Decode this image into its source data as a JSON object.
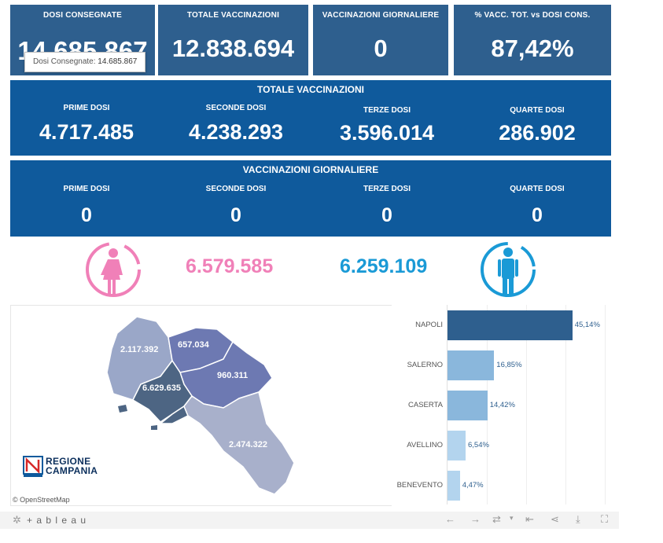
{
  "kpis": [
    {
      "label": "DOSI  CONSEGNATE",
      "value": "14.685.867"
    },
    {
      "label": "TOTALE VACCINAZIONI",
      "value": "12.838.694"
    },
    {
      "label": "VACCINAZIONI GIORNALIERE",
      "value": "0"
    },
    {
      "label": "% VACC. TOT. vs DOSI CONS.",
      "value": "87,42%"
    }
  ],
  "tooltip": {
    "label": "Dosi Consegnate:",
    "value": "14.685.867"
  },
  "totale": {
    "title": "TOTALE VACCINAZIONI",
    "items": [
      {
        "label": "PRIME DOSI",
        "value": "4.717.485"
      },
      {
        "label": "SECONDE DOSI",
        "value": "4.238.293"
      },
      {
        "label": "TERZE DOSI",
        "value": "3.596.014"
      },
      {
        "label": "QUARTE DOSI",
        "value": "286.902"
      }
    ]
  },
  "giornaliere": {
    "title": "VACCINAZIONI GIORNALIERE",
    "items": [
      {
        "label": "PRIME DOSI",
        "value": "0"
      },
      {
        "label": "SECONDE DOSI",
        "value": "0"
      },
      {
        "label": "TERZE DOSI",
        "value": "0"
      },
      {
        "label": "QUARTE DOSI",
        "value": "0"
      }
    ]
  },
  "gender": {
    "female_value": "6.579.585",
    "female_color": "#f080b8",
    "male_value": "6.259.109",
    "male_color": "#1a9ad6"
  },
  "map": {
    "province_values": {
      "caserta": "2.117.392",
      "benevento": "657.034",
      "avellino": "960.311",
      "napoli": "6.629.635",
      "salerno": "2.474.322"
    },
    "logo_line1": "REGIONE",
    "logo_line2": "CAMPANIA",
    "attribution": "© OpenStreetMap"
  },
  "chart_data": {
    "type": "bar",
    "orientation": "horizontal",
    "categories": [
      "NAPOLI",
      "SALERNO",
      "CASERTA",
      "AVELLINO",
      "BENEVENTO"
    ],
    "values": [
      45.14,
      16.85,
      14.42,
      6.54,
      4.47
    ],
    "labels": [
      "45,14%",
      "16,85%",
      "14,42%",
      "6,54%",
      "4,47%"
    ],
    "colors": [
      "#2e5f8e",
      "#8ab7dc",
      "#8ab7dc",
      "#b3d4ee",
      "#b3d4ee"
    ],
    "xlim": [
      0,
      60
    ],
    "grid": true
  },
  "footer": {
    "brand": "+ a b l e a u"
  }
}
